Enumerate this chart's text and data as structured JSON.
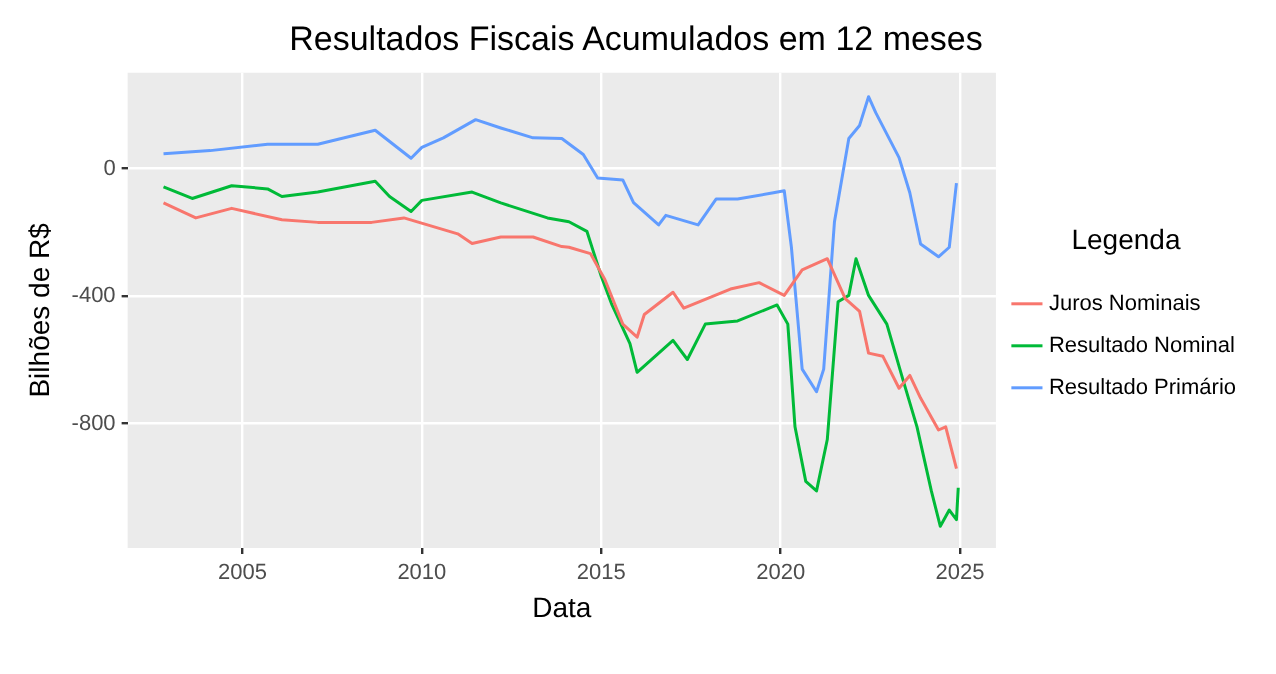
{
  "chart_data": {
    "type": "line",
    "title": "Resultados Fiscais Acumulados em 12 meses",
    "xlabel": "Data",
    "ylabel": "Bilhões de R$",
    "legend_title": "Legenda",
    "legend": "right",
    "grid": true,
    "marker": "none",
    "line_style": "solid",
    "xlim": [
      2001.8,
      2026
    ],
    "xticks": [
      2005,
      2010,
      2015,
      2020,
      2025
    ],
    "ylim": [
      -1190,
      300
    ],
    "yticks": [
      -800,
      -400,
      0
    ],
    "series": [
      {
        "name": "Juros Nominais",
        "color": "#f8766d",
        "x": [
          2002.8,
          2003.7,
          2004.7,
          2006.1,
          2007.1,
          2008.6,
          2009.5,
          2011,
          2011.4,
          2012.2,
          2013.1,
          2013.9,
          2014.1,
          2014.7,
          2015.1,
          2015.6,
          2016,
          2016.2,
          2017,
          2017.3,
          2018.6,
          2019.4,
          2020.1,
          2020.6,
          2021.3,
          2021.8,
          2022.2,
          2022.45,
          2022.85,
          2023.3,
          2023.6,
          2023.9,
          2024.4,
          2024.6,
          2024.9
        ],
        "values": [
          -108,
          -155,
          -125,
          -161,
          -169,
          -169,
          -155,
          -205,
          -235,
          -215,
          -215,
          -245,
          -247,
          -267,
          -348,
          -488,
          -529,
          -458,
          -388,
          -438,
          -378,
          -358,
          -398,
          -318,
          -283,
          -408,
          -448,
          -579,
          -589,
          -689,
          -649,
          -720,
          -820,
          -810,
          -941
        ]
      },
      {
        "name": "Resultado Nominal",
        "color": "#00ba38",
        "x": [
          2002.8,
          2003.6,
          2004.7,
          2005.7,
          2006.1,
          2007.1,
          2008.7,
          2009.1,
          2009.7,
          2010,
          2011.4,
          2012.2,
          2013.5,
          2014.1,
          2014.6,
          2015,
          2015.3,
          2015.8,
          2016,
          2016.5,
          2017,
          2017.4,
          2017.9,
          2018.8,
          2019.9,
          2020.2,
          2020.4,
          2020.7,
          2021,
          2021.3,
          2021.6,
          2021.9,
          2022.1,
          2022.45,
          2022.96,
          2023.4,
          2023.8,
          2024.2,
          2024.45,
          2024.7,
          2024.9,
          2024.95
        ],
        "values": [
          -58,
          -94,
          -54,
          -64,
          -88,
          -74,
          -40,
          -88,
          -135,
          -100,
          -74,
          -108,
          -155,
          -167,
          -197,
          -338,
          -428,
          -549,
          -639,
          -589,
          -539,
          -599,
          -488,
          -478,
          -428,
          -488,
          -810,
          -981,
          -1011,
          -850,
          -418,
          -398,
          -283,
          -398,
          -488,
          -659,
          -810,
          -1011,
          -1122,
          -1071,
          -1101,
          -1001
        ]
      },
      {
        "name": "Resultado Primário",
        "color": "#619cff",
        "x": [
          2002.8,
          2004.1,
          2005.7,
          2007.1,
          2008.7,
          2009.7,
          2010,
          2010.6,
          2011.5,
          2012.2,
          2013.1,
          2013.9,
          2014.5,
          2014.9,
          2015.6,
          2015.9,
          2016.6,
          2016.8,
          2017.7,
          2018.2,
          2018.8,
          2019.8,
          2020.1,
          2020.3,
          2020.6,
          2021,
          2021.2,
          2021.5,
          2021.9,
          2022.2,
          2022.45,
          2022.65,
          2023.3,
          2023.6,
          2023.9,
          2024.4,
          2024.7,
          2024.9
        ],
        "values": [
          46,
          56,
          76,
          76,
          120,
          32,
          66,
          96,
          153,
          127,
          96,
          94,
          44,
          -30,
          -36,
          -107,
          -177,
          -147,
          -177,
          -96,
          -96,
          -76,
          -70,
          -247,
          -629,
          -700,
          -629,
          -167,
          94,
          135,
          225,
          175,
          34,
          -76,
          -237,
          -277,
          -247,
          -46
        ]
      }
    ]
  }
}
